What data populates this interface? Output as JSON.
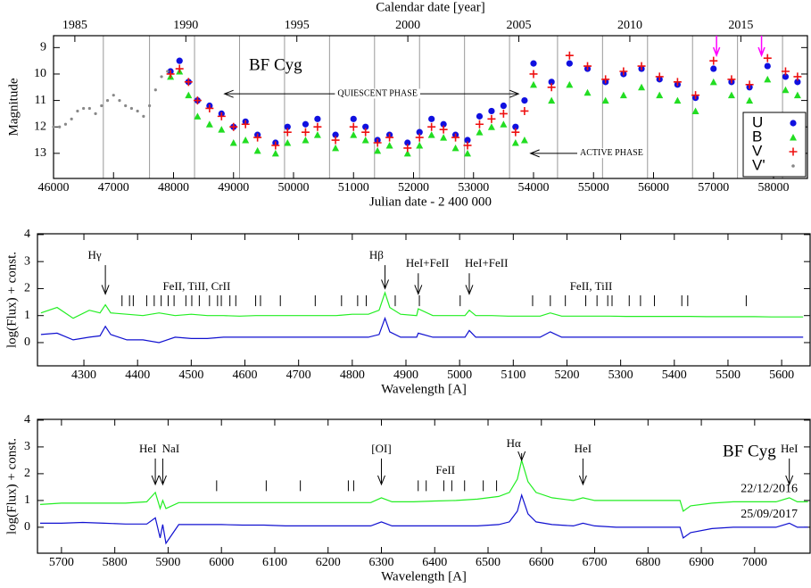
{
  "chart_data": [
    {
      "type": "scatter",
      "xlabel": "Julian date - 2 400 000",
      "ylabel": "Magnitude",
      "x2label": "Calendar date [year]",
      "xlim": [
        46000,
        58565
      ],
      "xticks": [
        46000,
        47000,
        48000,
        49000,
        50000,
        51000,
        52000,
        53000,
        54000,
        55000,
        56000,
        57000,
        58000
      ],
      "x2lim": [
        1984.04,
        2018.0
      ],
      "x2ticks": [
        1985,
        1990,
        1995,
        2000,
        2005,
        2010,
        2015
      ],
      "ylim": [
        8.55,
        13.95
      ],
      "yticks": [
        9,
        10,
        11,
        12,
        13
      ],
      "y_inverted": true,
      "vlines": [
        46830,
        47600,
        48350,
        49100,
        49850,
        50600,
        51350,
        52100,
        52850,
        53600,
        54400,
        55150,
        55900,
        56650,
        57400,
        58150
      ],
      "arrows_x": [
        57050,
        57800
      ],
      "arrow_color": "#ff00ff",
      "legend": "lower right",
      "annotations": [
        {
          "text": "BF Cyg",
          "x": 49700,
          "y": 9.7
        },
        {
          "text": "QUIESCENT PHASE",
          "x": 51400,
          "y": 10.75,
          "arrows": [
            48850,
            53750
          ]
        },
        {
          "text": "ACTIVE PHASE",
          "x": 55300,
          "y": 13.0,
          "arrows": [
            53950
          ]
        }
      ],
      "series": [
        {
          "name": "U",
          "color": "#1010e0",
          "marker": "circle",
          "x": [
            47950,
            48100,
            48250,
            48400,
            48600,
            48800,
            49000,
            49200,
            49400,
            49700,
            49900,
            50200,
            50400,
            50700,
            51000,
            51200,
            51400,
            51600,
            51900,
            52100,
            52300,
            52500,
            52700,
            52900,
            53100,
            53300,
            53500,
            53700,
            53850,
            54000,
            54300,
            54600,
            54900,
            55200,
            55500,
            55800,
            56100,
            56400,
            56700,
            57000,
            57300,
            57600,
            57900,
            58200,
            58400
          ],
          "values": [
            9.9,
            9.5,
            10.3,
            11.0,
            11.2,
            11.5,
            12.0,
            11.8,
            12.3,
            12.6,
            12.0,
            11.9,
            11.7,
            12.3,
            11.7,
            12.0,
            12.5,
            12.3,
            12.6,
            12.2,
            11.7,
            11.9,
            12.3,
            12.5,
            11.6,
            11.4,
            11.2,
            12.0,
            11.0,
            9.6,
            10.3,
            9.6,
            9.8,
            10.3,
            10.0,
            9.8,
            10.2,
            10.4,
            10.9,
            9.8,
            10.3,
            10.5,
            9.7,
            10.1,
            10.3
          ]
        },
        {
          "name": "B",
          "color": "#22dd22",
          "marker": "triangle",
          "x": [
            47950,
            48100,
            48250,
            48400,
            48600,
            48800,
            49000,
            49200,
            49400,
            49700,
            49900,
            50200,
            50400,
            50700,
            51000,
            51200,
            51400,
            51600,
            51900,
            52100,
            52300,
            52500,
            52700,
            52900,
            53100,
            53300,
            53500,
            53700,
            53850,
            54000,
            54300,
            54600,
            54900,
            55200,
            55500,
            55800,
            56100,
            56400,
            56700,
            57000,
            57300,
            57600,
            57900,
            58200,
            58400
          ],
          "values": [
            10.1,
            9.9,
            10.8,
            11.6,
            11.9,
            12.1,
            12.6,
            12.5,
            12.9,
            13.0,
            12.6,
            12.5,
            12.3,
            12.8,
            12.3,
            12.5,
            12.9,
            12.7,
            13.0,
            12.7,
            12.3,
            12.4,
            12.8,
            13.0,
            12.2,
            12.0,
            11.9,
            12.6,
            12.5,
            10.4,
            11.0,
            10.4,
            10.7,
            11.0,
            10.8,
            10.5,
            10.8,
            11.0,
            11.4,
            10.3,
            10.8,
            11.0,
            10.2,
            10.6,
            10.8
          ]
        },
        {
          "name": "V",
          "color": "#ee1111",
          "marker": "plus",
          "x": [
            47950,
            48100,
            48250,
            48400,
            48600,
            48800,
            49000,
            49200,
            49400,
            49700,
            49900,
            50200,
            50400,
            50700,
            51000,
            51200,
            51400,
            51600,
            51900,
            52100,
            52300,
            52500,
            52700,
            52900,
            53100,
            53300,
            53500,
            53700,
            53850,
            54000,
            54300,
            54600,
            54900,
            55200,
            55500,
            55800,
            56100,
            56400,
            56700,
            57000,
            57300,
            57600,
            57900,
            58200,
            58400
          ],
          "values": [
            10.0,
            9.8,
            10.3,
            11.0,
            11.3,
            11.6,
            12.0,
            11.9,
            12.4,
            12.7,
            12.2,
            12.2,
            12.0,
            12.5,
            12.0,
            12.2,
            12.6,
            12.4,
            12.8,
            12.4,
            12.0,
            12.1,
            12.4,
            12.7,
            11.9,
            11.7,
            11.5,
            12.2,
            11.4,
            10.0,
            10.5,
            9.3,
            9.7,
            10.2,
            9.9,
            9.7,
            10.1,
            10.3,
            10.8,
            9.5,
            10.2,
            10.4,
            9.4,
            9.9,
            10.1
          ]
        },
        {
          "name": "V'",
          "color": "#888888",
          "marker": "dot",
          "x": [
            46000,
            46100,
            46200,
            46300,
            46400,
            46500,
            46600,
            46700,
            46800,
            46900,
            47000,
            47100,
            47200,
            47300,
            47400,
            47500,
            47600,
            47700,
            47800,
            47900
          ],
          "values": [
            12.0,
            12.0,
            11.9,
            11.7,
            11.4,
            11.3,
            11.3,
            11.5,
            11.2,
            11.0,
            10.8,
            11.0,
            11.2,
            11.3,
            11.4,
            11.6,
            11.2,
            10.6,
            10.1,
            9.9
          ]
        }
      ]
    },
    {
      "type": "line",
      "xlabel": "Wavelength [A]",
      "ylabel": "log(Flux) + const.",
      "xlim": [
        4213.5,
        5653
      ],
      "xticks": [
        4300,
        4400,
        4500,
        4600,
        4700,
        4800,
        4900,
        5000,
        5100,
        5200,
        5300,
        5400,
        5500,
        5600
      ],
      "ylim": [
        -0.86,
        4.03
      ],
      "yticks": [
        0,
        1,
        2,
        3,
        4
      ],
      "line_markers": [
        4371,
        4385,
        4392,
        4417,
        4431,
        4444,
        4457,
        4468,
        4490,
        4501,
        4515,
        4534,
        4549,
        4556,
        4572,
        4583,
        4620,
        4629,
        4666,
        4731,
        4780,
        4810,
        4826,
        4880,
        4925,
        5001,
        5136,
        5169,
        5197,
        5235,
        5256,
        5276,
        5284,
        5316,
        5337,
        5363,
        5414,
        5425,
        5534
      ],
      "annotations": [
        {
          "text": "Hγ",
          "x": 4320,
          "y": 3.2,
          "tip_x": 4340,
          "tip": 1.8
        },
        {
          "text": "Hβ",
          "x": 4845,
          "y": 3.2,
          "tip_x": 4861,
          "tip": 2.0
        },
        {
          "text": "HeI+FeII",
          "x": 4940,
          "y": 2.9,
          "tip_x": 4923,
          "tip": 1.8
        },
        {
          "text": "HeI+FeII",
          "x": 5050,
          "y": 2.9,
          "tip_x": 5018,
          "tip": 1.8
        },
        {
          "text": "FeII, TiII, CrII",
          "x": 4510,
          "y": 2.05
        },
        {
          "text": "FeII, TiII",
          "x": 5245,
          "y": 2.05
        }
      ],
      "x": [
        4220,
        4250,
        4280,
        4310,
        4330,
        4340,
        4350,
        4380,
        4410,
        4440,
        4470,
        4500,
        4530,
        4560,
        4590,
        4620,
        4650,
        4680,
        4710,
        4740,
        4770,
        4800,
        4830,
        4850,
        4861,
        4870,
        4890,
        4920,
        4923,
        4950,
        4980,
        5010,
        5018,
        5030,
        5060,
        5090,
        5120,
        5150,
        5169,
        5190,
        5220,
        5250,
        5280,
        5310,
        5340,
        5370,
        5400,
        5430,
        5460,
        5490,
        5520,
        5550,
        5580,
        5610,
        5640
      ],
      "series": [
        {
          "color": "#22ee22",
          "values": [
            1.1,
            1.3,
            0.9,
            1.2,
            1.1,
            1.4,
            1.1,
            1.05,
            1.0,
            1.1,
            1.0,
            1.05,
            1.0,
            1.0,
            0.98,
            1.0,
            1.0,
            1.0,
            1.0,
            1.0,
            1.0,
            1.05,
            1.05,
            1.2,
            1.85,
            1.3,
            1.05,
            1.0,
            1.25,
            1.0,
            1.0,
            1.0,
            1.2,
            1.0,
            1.0,
            0.98,
            0.98,
            0.98,
            1.1,
            0.98,
            0.98,
            0.98,
            0.98,
            0.97,
            0.97,
            0.97,
            0.97,
            0.97,
            0.96,
            0.96,
            0.96,
            0.96,
            0.95,
            0.95,
            0.95
          ]
        },
        {
          "color": "#1010d0",
          "values": [
            0.3,
            0.35,
            0.1,
            0.2,
            0.25,
            0.6,
            0.3,
            0.1,
            0.1,
            0.0,
            0.2,
            0.15,
            0.15,
            0.2,
            0.2,
            0.2,
            0.2,
            0.2,
            0.2,
            0.2,
            0.2,
            0.2,
            0.2,
            0.3,
            0.9,
            0.4,
            0.2,
            0.2,
            0.35,
            0.2,
            0.2,
            0.2,
            0.45,
            0.2,
            0.2,
            0.2,
            0.2,
            0.2,
            0.4,
            0.2,
            0.2,
            0.2,
            0.2,
            0.2,
            0.2,
            0.2,
            0.2,
            0.2,
            0.2,
            0.2,
            0.2,
            0.2,
            0.2,
            0.2,
            0.2
          ]
        }
      ]
    },
    {
      "type": "line",
      "xlabel": "Wavelength [A]",
      "ylabel": "log(Flux) + const.",
      "xlim": [
        5655,
        7104
      ],
      "xticks": [
        5700,
        5800,
        5900,
        6000,
        6100,
        6200,
        6300,
        6400,
        6500,
        6600,
        6700,
        6800,
        6900,
        7000
      ],
      "ylim": [
        -0.97,
        4.03
      ],
      "yticks": [
        0,
        1,
        2,
        3,
        4
      ],
      "line_markers": [
        5991,
        6084,
        6148,
        6238,
        6248,
        6369,
        6384,
        6417,
        6432,
        6456,
        6491,
        6516
      ],
      "annotations": [
        {
          "text": "HeI",
          "x": 5862,
          "y": 2.9,
          "tip_x": 5876,
          "tip": 1.6
        },
        {
          "text": "NaI",
          "x": 5905,
          "y": 2.9,
          "tip_x": 5890,
          "tip": 1.6
        },
        {
          "text": "[OI]",
          "x": 6300,
          "y": 2.9,
          "tip_x": 6300,
          "tip": 1.6
        },
        {
          "text": "Hα",
          "x": 6548,
          "y": 3.1,
          "tip_x": 6563,
          "tip": 2.5
        },
        {
          "text": "HeI",
          "x": 6678,
          "y": 2.9,
          "tip_x": 6678,
          "tip": 1.6
        },
        {
          "text": "HeI",
          "x": 7065,
          "y": 2.9,
          "tip_x": 7065,
          "tip": 1.6
        },
        {
          "text": "FeII",
          "x": 6420,
          "y": 2.1
        },
        {
          "text": "BF Cyg",
          "x": 6990,
          "y": 2.8
        }
      ],
      "x": [
        5660,
        5700,
        5740,
        5780,
        5820,
        5860,
        5876,
        5885,
        5890,
        5896,
        5920,
        5960,
        6000,
        6040,
        6080,
        6120,
        6160,
        6200,
        6240,
        6280,
        6300,
        6320,
        6360,
        6400,
        6440,
        6480,
        6520,
        6540,
        6555,
        6563,
        6575,
        6590,
        6620,
        6660,
        6678,
        6700,
        6740,
        6780,
        6820,
        6860,
        6866,
        6880,
        6920,
        6960,
        7000,
        7040,
        7065,
        7080,
        7100
      ],
      "series": [
        {
          "name": "22/12/2016",
          "color": "#22ee22",
          "values": [
            0.85,
            0.9,
            0.9,
            0.9,
            0.9,
            0.95,
            1.3,
            0.7,
            1.0,
            0.7,
            0.92,
            0.92,
            0.92,
            0.92,
            0.92,
            0.92,
            0.92,
            0.92,
            0.92,
            0.92,
            1.1,
            0.95,
            0.95,
            0.98,
            1.0,
            1.05,
            1.15,
            1.3,
            1.8,
            2.5,
            1.7,
            1.3,
            1.1,
            1.0,
            1.1,
            1.0,
            1.0,
            1.0,
            1.0,
            1.0,
            0.6,
            0.8,
            0.9,
            0.95,
            0.95,
            0.95,
            1.1,
            0.95,
            0.95
          ]
        },
        {
          "name": "25/09/2017",
          "color": "#1010d0",
          "values": [
            0.15,
            0.15,
            0.18,
            0.15,
            0.12,
            0.12,
            0.35,
            -0.4,
            0.1,
            -0.6,
            0.1,
            0.1,
            0.1,
            0.08,
            0.08,
            0.05,
            0.05,
            0.05,
            0.05,
            0.05,
            0.2,
            0.05,
            0.05,
            0.05,
            0.05,
            0.05,
            0.1,
            0.2,
            0.6,
            1.2,
            0.5,
            0.2,
            0.1,
            0.05,
            0.15,
            0.05,
            0.0,
            0.0,
            0.0,
            0.0,
            -0.4,
            -0.2,
            -0.05,
            0.0,
            0.0,
            0.0,
            0.15,
            0.0,
            0.0
          ]
        }
      ]
    }
  ]
}
